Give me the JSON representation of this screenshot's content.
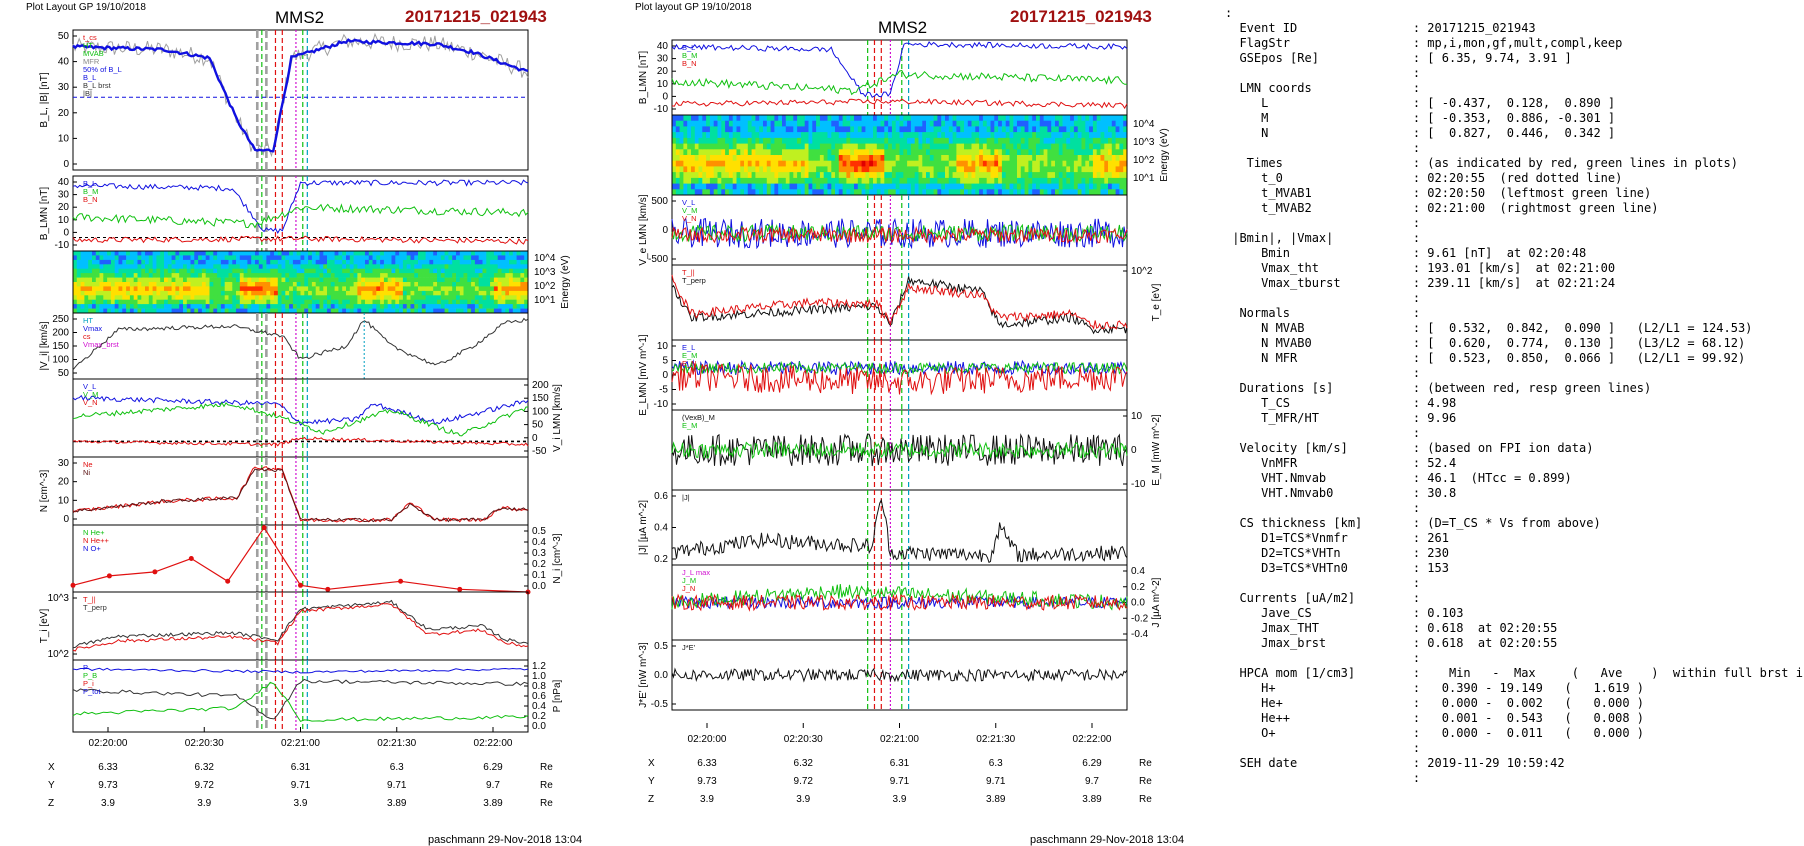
{
  "header": {
    "left_small": "Plot Layout GP 19/10/2018",
    "right_small": "Plot layout GP 19/10/2018",
    "spacecraft": "MMS2",
    "event": "20171215_021943"
  },
  "footer": {
    "left": "paschmann 29-Nov-2018 13:04",
    "right": "paschmann 29-Nov-2018 13:04"
  },
  "colors": {
    "blue": "#1010e0",
    "green": "#10c010",
    "red": "#e01010",
    "black": "#000000",
    "cyan": "#00a0c0",
    "magenta": "#d010d0",
    "gray": "#a0a0a0",
    "event_red": "#a01010"
  },
  "chart_data": [
    {
      "type": "line",
      "title": "MMS2 20171215_021943 (left column)",
      "x_ticks": [
        "02:20:00",
        "02:20:30",
        "02:21:00",
        "02:21:30",
        "02:22:00"
      ],
      "ephemeris": {
        "labels": [
          "X",
          "Y",
          "Z"
        ],
        "unit": "Re",
        "rows": [
          [
            "6.33",
            "6.32",
            "6.31",
            "6.3",
            "6.29"
          ],
          [
            "9.73",
            "9.72",
            "9.71",
            "9.71",
            "9.7"
          ],
          [
            "3.9",
            "3.9",
            "3.9",
            "3.89",
            "3.89"
          ]
        ]
      },
      "panels": [
        {
          "ylabel": "B_L, |B| [nT]",
          "ylim": [
            0,
            50
          ],
          "yticks": [
            "50",
            "40",
            "30",
            "20",
            "10",
            "0"
          ],
          "legend": [
            "t_cs",
            "HT",
            "MVAB",
            "MFR",
            "50% of B_L",
            "B_L",
            "B_L brst",
            "|B|"
          ],
          "annotation": "50% of B_L"
        },
        {
          "ylabel": "B_LMN [nT]",
          "ylim": [
            -10,
            45
          ],
          "yticks": [
            "40",
            "30",
            "20",
            "10",
            "0",
            "-10"
          ],
          "legend": [
            "B_L",
            "B_M",
            "B_N"
          ]
        },
        {
          "ylabel": "Energy (eV)",
          "type": "heatmap",
          "yticks": [
            "10^4",
            "10^3",
            "10^2",
            "10^1"
          ]
        },
        {
          "ylabel": "|V_i| [km/s]",
          "ylim": [
            50,
            250
          ],
          "yticks": [
            "250",
            "200",
            "150",
            "100",
            "50"
          ],
          "legend": [
            "HT",
            "Vmax",
            "cs",
            "Vmax_brst"
          ]
        },
        {
          "ylabel": "V_i LMN [km/s]",
          "ylim": [
            -50,
            200
          ],
          "yticks": [
            "200",
            "150",
            "100",
            "50",
            "0",
            "-50"
          ],
          "legend": [
            "V_L",
            "V_M",
            "V_N"
          ]
        },
        {
          "ylabel": "N [cm^-3]",
          "ylim": [
            0,
            40
          ],
          "yticks": [
            "30",
            "20",
            "10",
            "0"
          ],
          "legend": [
            "Ne",
            "Ni"
          ]
        },
        {
          "ylabel": "N_i [cm^-3]",
          "ylim": [
            0,
            0.5
          ],
          "yticks": [
            "0.5",
            "0.4",
            "0.3",
            "0.2",
            "0.1",
            "0.0"
          ],
          "legend": [
            "N He+",
            "N He++",
            "N O+"
          ]
        },
        {
          "ylabel": "T_i [eV]",
          "scale": "log",
          "yticks": [
            "10^3",
            "10^2"
          ],
          "legend": [
            "T_||",
            "T_perp"
          ]
        },
        {
          "ylabel": "P [nPa]",
          "ylim": [
            0,
            1.2
          ],
          "yticks": [
            "1.2",
            "1.0",
            "0.8",
            "0.6",
            "0.4",
            "0.2",
            "0.0"
          ],
          "legend": [
            "P",
            "P_B",
            "P_i",
            "P_tot"
          ]
        }
      ]
    },
    {
      "type": "line",
      "title": "MMS2 20171215_021943 (center column)",
      "x_ticks": [
        "02:20:00",
        "02:20:30",
        "02:21:00",
        "02:21:30",
        "02:22:00"
      ],
      "ephemeris": {
        "labels": [
          "X",
          "Y",
          "Z"
        ],
        "unit": "Re",
        "rows": [
          [
            "6.33",
            "6.32",
            "6.31",
            "6.3",
            "6.29"
          ],
          [
            "9.73",
            "9.72",
            "9.71",
            "9.71",
            "9.7"
          ],
          [
            "3.9",
            "3.9",
            "3.9",
            "3.89",
            "3.89"
          ]
        ]
      },
      "panels": [
        {
          "ylabel": "B_LMN [nT]",
          "ylim": [
            -10,
            45
          ],
          "yticks": [
            "40",
            "30",
            "20",
            "10",
            "0",
            "-10"
          ],
          "legend": [
            "B_L",
            "B_M",
            "B_N"
          ]
        },
        {
          "ylabel": "Energy (eV)",
          "type": "heatmap",
          "yticks": [
            "10^4",
            "10^3",
            "10^2",
            "10^1"
          ]
        },
        {
          "ylabel": "V_e LMN [km/s]",
          "ylim": [
            -500,
            600
          ],
          "yticks": [
            "500",
            "0",
            "-500"
          ],
          "legend": [
            "V_L",
            "V_M",
            "V_N"
          ]
        },
        {
          "ylabel": "T_e [eV]",
          "scale": "log",
          "yticks": [
            "10^2"
          ],
          "legend": [
            "T_||",
            "T_perp"
          ]
        },
        {
          "ylabel": "E_LMN [mV m^-1]",
          "ylim": [
            -15,
            10
          ],
          "yticks": [
            "10",
            "5",
            "0",
            "-5",
            "-10"
          ],
          "legend": [
            "E_L",
            "E_M",
            "E_N"
          ]
        },
        {
          "ylabel": "E_M [mW m^-2]",
          "ylim": [
            -15,
            15
          ],
          "yticks": [
            "10",
            "0",
            "-10"
          ],
          "legend": [
            "(VexB)_M",
            "E_M"
          ]
        },
        {
          "ylabel": "|J| [µA m^-2]",
          "ylim": [
            0,
            0.6
          ],
          "yticks": [
            "0.6",
            "0.4",
            "0.2"
          ],
          "legend": [
            "|J|"
          ]
        },
        {
          "ylabel": "J [µA m^-2]",
          "ylim": [
            -0.5,
            0.5
          ],
          "yticks": [
            "0.4",
            "0.2",
            "0.0",
            "-0.2",
            "-0.4"
          ],
          "legend": [
            "J_L max",
            "J_M",
            "J_N"
          ]
        },
        {
          "ylabel": "J*E' [nW m^-3]",
          "ylim": [
            -0.7,
            0.7
          ],
          "yticks": [
            "0.5",
            "0.0",
            "-0.5"
          ],
          "legend": [
            "J*E'"
          ]
        }
      ]
    }
  ],
  "info_rows": [
    ":",
    "  Event ID                : 20171215_021943",
    "  FlagStr                 : mp,i,mon,gf,mult,compl,keep",
    "  GSEpos [Re]             : [ 6.35, 9.74, 3.91 ]",
    "                          :",
    "  LMN coords              :",
    "     L                    : [ -0.437,  0.128,  0.890 ]",
    "     M                    : [ -0.353,  0.886, -0.301 ]",
    "     N                    : [  0.827,  0.446,  0.342 ]",
    "                          :",
    "   Times                  : (as indicated by red, green lines in plots)",
    "     t_0                  : 02:20:55  (red dotted line)",
    "     t_MVAB1              : 02:20:50  (leftmost green line)",
    "     t_MVAB2              : 02:21:00  (rightmost green line)",
    "                          :",
    " |Bmin|, |Vmax|           :",
    "     Bmin                 : 9.61 [nT]  at 02:20:48",
    "     Vmax_tht             : 193.01 [km/s]  at 02:21:00",
    "     Vmax_tburst          : 239.11 [km/s]  at 02:21:24",
    "                          :",
    "  Normals                 :",
    "     N MVAB               : [  0.532,  0.842,  0.090 ]   (L2/L1 = 124.53)",
    "     N MVAB0              : [  0.620,  0.774,  0.130 ]   (L3/L2 = 68.12)",
    "     N MFR                : [  0.523,  0.850,  0.066 ]   (L2/L1 = 99.92)",
    "                          :",
    "  Durations [s]           : (between red, resp green lines)",
    "     T_CS                 : 4.98",
    "     T_MFR/HT             : 9.96",
    "                          :",
    "  Velocity [km/s]         : (based on FPI ion data)",
    "     VnMFR                : 52.4",
    "     VHT.Nmvab            : 46.1  (HTcc = 0.899)",
    "     VHT.Nmvab0           : 30.8",
    "                          :",
    "  CS thickness [km]       : (D=T_CS * Vs from above)",
    "     D1=TCS*Vnmfr         : 261",
    "     D2=TCS*VHTn          : 230",
    "     D3=TCS*VHTn0         : 153",
    "                          :",
    "  Currents [uA/m2]        :",
    "     Jave_CS              : 0.103",
    "     Jmax_THT             : 0.618  at 02:20:55",
    "     Jmax_brst            : 0.618  at 02:20:55",
    "                          :",
    "  HPCA mom [1/cm3]        :    Min   -  Max     (   Ave    )  within full brst int",
    "     H+                   :   0.390 - 19.149   (   1.619 )",
    "     He+                  :   0.000 -  0.002   (   0.000 )",
    "     He++                 :   0.001 -  0.543   (   0.008 )",
    "     O+                   :   0.000 -  0.011   (   0.000 )",
    "                          :",
    "  SEH date                : 2019-11-29 10:59:42",
    "                          :"
  ]
}
